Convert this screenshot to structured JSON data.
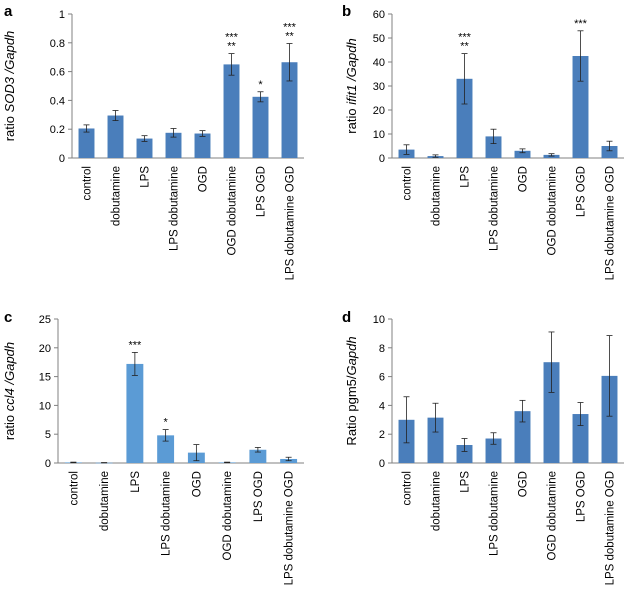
{
  "chart_data": [
    {
      "panel": "a",
      "type": "bar",
      "ylabel_parts": [
        {
          "text": "ratio ",
          "italic": false
        },
        {
          "text": "SOD3 /Gapdh",
          "italic": true
        }
      ],
      "categories": [
        "control",
        "dobutamine",
        "LPS",
        "LPS dobutamine",
        "OGD",
        "OGD dobutamine",
        "LPS OGD",
        "LPS dobutamine OGD"
      ],
      "values": [
        0.205,
        0.295,
        0.135,
        0.175,
        0.17,
        0.65,
        0.425,
        0.665
      ],
      "errors": [
        0.025,
        0.035,
        0.02,
        0.03,
        0.02,
        0.075,
        0.035,
        0.13
      ],
      "significance": [
        [],
        [],
        [],
        [],
        [],
        [
          "***",
          "**"
        ],
        [
          "*"
        ],
        [
          "***",
          "**"
        ]
      ],
      "ylim": [
        0,
        1
      ],
      "yticks": [
        0,
        0.2,
        0.4,
        0.6,
        0.8,
        1
      ],
      "ytick_labels": [
        "0",
        "0.2",
        "0.4",
        "0.6",
        "0.8",
        "1"
      ],
      "bar_color": "#4a7ebb"
    },
    {
      "panel": "b",
      "type": "bar",
      "ylabel_parts": [
        {
          "text": "ratio ",
          "italic": false
        },
        {
          "text": "ifit1 /Gapdh",
          "italic": true
        }
      ],
      "categories": [
        "control",
        "dobutamine",
        "LPS",
        "LPS dobutamine",
        "OGD",
        "OGD dobutamine",
        "LPS OGD",
        "LPS dobutamine OGD"
      ],
      "values": [
        3.5,
        0.8,
        33,
        9,
        3,
        1.3,
        42.5,
        5
      ],
      "errors": [
        2,
        0.5,
        10.5,
        3,
        0.8,
        0.5,
        10.5,
        2
      ],
      "significance": [
        [],
        [],
        [
          "***",
          "**"
        ],
        [],
        [],
        [],
        [
          "***"
        ],
        []
      ],
      "ylim": [
        0,
        60
      ],
      "yticks": [
        0,
        10,
        20,
        30,
        40,
        50,
        60
      ],
      "ytick_labels": [
        "0",
        "10",
        "20",
        "30",
        "40",
        "50",
        "60"
      ],
      "bar_color": "#4a7ebb"
    },
    {
      "panel": "c",
      "type": "bar",
      "ylabel_parts": [
        {
          "text": "ratio ",
          "italic": false
        },
        {
          "text": "ccl4 /Gapdh",
          "italic": true
        }
      ],
      "categories": [
        "control",
        "dobutamine",
        "LPS",
        "LPS dobutamine",
        "OGD",
        "OGD dobutamine",
        "LPS OGD",
        "LPS dobutamine OGD"
      ],
      "values": [
        0.1,
        0.05,
        17.2,
        4.8,
        1.8,
        0.1,
        2.3,
        0.7
      ],
      "errors": [
        0.05,
        0.03,
        2,
        1,
        1.4,
        0.05,
        0.4,
        0.3
      ],
      "significance": [
        [],
        [],
        [
          "***"
        ],
        [
          "*"
        ],
        [],
        [],
        [],
        []
      ],
      "ylim": [
        0,
        25
      ],
      "yticks": [
        0,
        5,
        10,
        15,
        20,
        25
      ],
      "ytick_labels": [
        "0",
        "5",
        "10",
        "15",
        "20",
        "25"
      ],
      "bar_color": "#5b9bd5"
    },
    {
      "panel": "d",
      "type": "bar",
      "ylabel_parts": [
        {
          "text": "Ratio pgm5/",
          "italic": false
        },
        {
          "text": "Gapdh",
          "italic": true
        }
      ],
      "categories": [
        "control",
        "dobutamine",
        "LPS",
        "LPS dobutamine",
        "OGD",
        "OGD dobutamine",
        "LPS OGD",
        "LPS dobutamine OGD"
      ],
      "values": [
        3,
        3.15,
        1.25,
        1.7,
        3.6,
        7,
        3.4,
        6.05
      ],
      "errors": [
        1.6,
        1,
        0.45,
        0.4,
        0.75,
        2.1,
        0.8,
        2.8
      ],
      "significance": [
        [],
        [],
        [],
        [],
        [],
        [],
        [],
        []
      ],
      "ylim": [
        0,
        10
      ],
      "yticks": [
        0,
        2,
        4,
        6,
        8,
        10
      ],
      "ytick_labels": [
        "0",
        "2",
        "4",
        "6",
        "8",
        "10"
      ],
      "bar_color": "#4a7ebb"
    }
  ]
}
